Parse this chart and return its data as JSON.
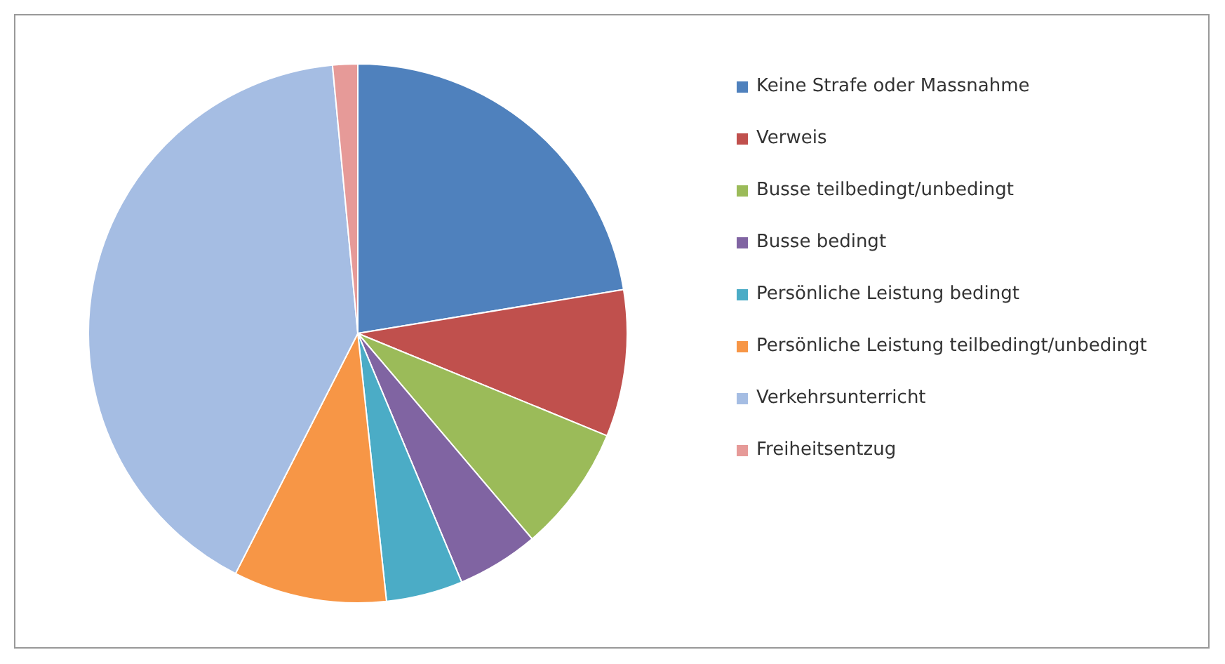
{
  "chart_data": {
    "type": "pie",
    "categories": [
      "Keine Strafe oder Massnahme",
      "Verweis",
      "Busse teilbedingt/unbedingt",
      "Busse bedingt",
      "Persönliche Leistung bedingt",
      "Persönliche Leistung teilbedingt/unbedingt",
      "Verkehrsunterricht",
      "Freiheitsentzug"
    ],
    "values": [
      22.4,
      8.8,
      7.6,
      4.9,
      4.6,
      9.2,
      41.0,
      1.5
    ],
    "colors": [
      "#4f81bd",
      "#c0504d",
      "#9bbb59",
      "#8064a2",
      "#4bacc6",
      "#f79646",
      "#a5bde3",
      "#e69a98"
    ],
    "legend": "right"
  }
}
